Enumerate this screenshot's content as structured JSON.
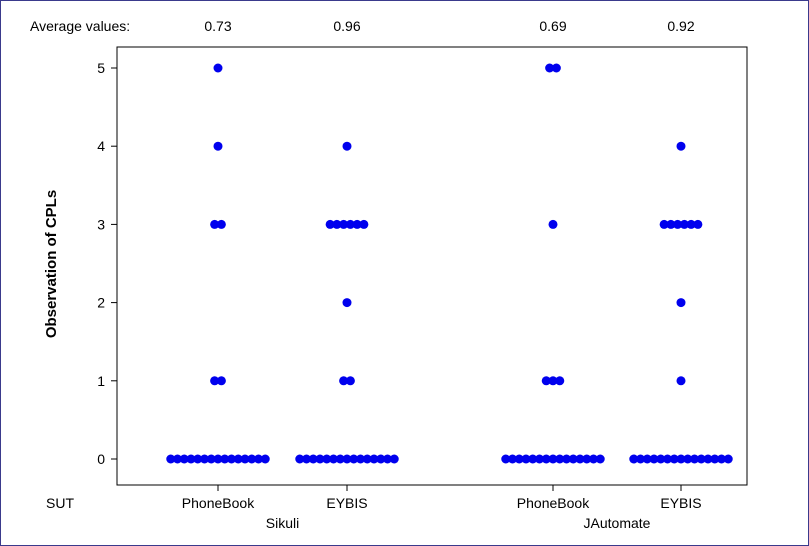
{
  "chart_data": {
    "type": "scatter",
    "ylabel": "Observation of CPLs",
    "ylim": [
      0,
      5
    ],
    "yticks": [
      "0",
      "1",
      "2",
      "3",
      "4",
      "5"
    ],
    "grid": false,
    "average_label": "Average values:",
    "sut_label": "SUT",
    "marker_color": "#0000ee",
    "groups": [
      {
        "tool": "Sikuli",
        "suts": [
          {
            "sut": "PhoneBook",
            "average": "0.73",
            "counts": [
              {
                "y": 0,
                "n": 15
              },
              {
                "y": 1,
                "n": 2
              },
              {
                "y": 3,
                "n": 2
              },
              {
                "y": 4,
                "n": 1
              },
              {
                "y": 5,
                "n": 1
              }
            ]
          },
          {
            "sut": "EYBIS",
            "average": "0.96",
            "counts": [
              {
                "y": 0,
                "n": 15
              },
              {
                "y": 1,
                "n": 2
              },
              {
                "y": 2,
                "n": 1
              },
              {
                "y": 3,
                "n": 6
              },
              {
                "y": 4,
                "n": 1
              }
            ]
          }
        ]
      },
      {
        "tool": "JAutomate",
        "suts": [
          {
            "sut": "PhoneBook",
            "average": "0.69",
            "counts": [
              {
                "y": 0,
                "n": 15
              },
              {
                "y": 1,
                "n": 3
              },
              {
                "y": 3,
                "n": 1
              },
              {
                "y": 5,
                "n": 2
              }
            ]
          },
          {
            "sut": "EYBIS",
            "average": "0.92",
            "counts": [
              {
                "y": 0,
                "n": 15
              },
              {
                "y": 1,
                "n": 1
              },
              {
                "y": 2,
                "n": 1
              },
              {
                "y": 3,
                "n": 6
              },
              {
                "y": 4,
                "n": 1
              }
            ]
          }
        ]
      }
    ]
  }
}
